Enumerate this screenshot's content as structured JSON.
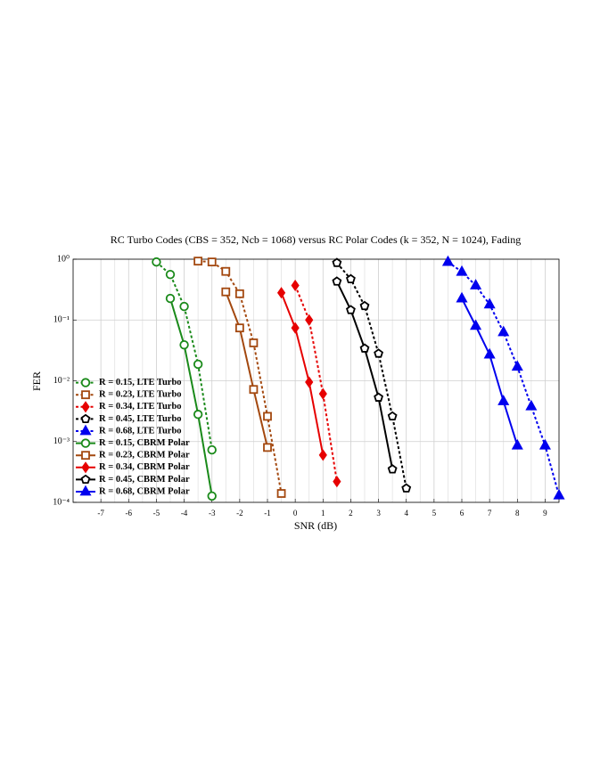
{
  "chart_data": {
    "type": "line",
    "title": "RC Turbo Codes (CBS = 352, Ncb = 1068) versus RC Polar Codes (k = 352, N = 1024), Fading",
    "x_label": "SNR (dB)",
    "y_label": "FER",
    "xlim": [
      -8,
      9.5
    ],
    "xticks": [
      -7,
      -6,
      -5,
      -4,
      -3,
      -2,
      -1,
      0,
      1,
      2,
      3,
      4,
      5,
      6,
      7,
      8,
      9
    ],
    "ylim": [
      0.0001,
      1
    ],
    "y_log": true,
    "yticks": [
      {
        "value": 0.0001,
        "label": "10⁻⁴"
      },
      {
        "value": 0.001,
        "label": "10⁻³"
      },
      {
        "value": 0.01,
        "label": "10⁻²"
      },
      {
        "value": 0.1,
        "label": "10⁻¹"
      },
      {
        "value": 1,
        "label": "10⁰"
      }
    ],
    "grid": true,
    "legend_position": "lower-left",
    "series": [
      {
        "name": "R = 0.15, LTE Turbo",
        "color": "#1a8a1a",
        "linestyle": "dashed",
        "marker": "circle",
        "marker_filled": false,
        "x": [
          -5,
          -4.5,
          -4,
          -3.5,
          -3
        ],
        "values": [
          0.9,
          0.56,
          0.167,
          0.0187,
          0.00073
        ]
      },
      {
        "name": "R = 0.23, LTE Turbo",
        "color": "#a3480f",
        "linestyle": "dashed",
        "marker": "square",
        "marker_filled": false,
        "x": [
          -3.5,
          -3,
          -2.5,
          -2,
          -1.5,
          -1,
          -0.5
        ],
        "values": [
          0.93,
          0.9,
          0.63,
          0.27,
          0.042,
          0.0026,
          0.00014
        ]
      },
      {
        "name": "R = 0.34, LTE Turbo",
        "color": "#e60000",
        "linestyle": "dashed",
        "marker": "diamond",
        "marker_filled": true,
        "x": [
          0,
          0.5,
          1,
          1.5
        ],
        "values": [
          0.37,
          0.1,
          0.0061,
          0.00022
        ]
      },
      {
        "name": "R = 0.45, LTE Turbo",
        "color": "#000000",
        "linestyle": "dashed",
        "marker": "pentagon",
        "marker_filled": false,
        "x": [
          1.5,
          2,
          2.5,
          3,
          3.5,
          4
        ],
        "values": [
          0.87,
          0.47,
          0.17,
          0.028,
          0.0026,
          0.00017
        ]
      },
      {
        "name": "R = 0.68, LTE Turbo",
        "color": "#0000ee",
        "linestyle": "dashed",
        "marker": "triangle",
        "marker_filled": true,
        "x": [
          5.5,
          6,
          6.5,
          7,
          7.5,
          8,
          8.5,
          9,
          9.5
        ],
        "values": [
          0.9,
          0.62,
          0.37,
          0.18,
          0.063,
          0.017,
          0.0038,
          0.00086,
          0.00013
        ]
      },
      {
        "name": "R = 0.15, CBRM Polar",
        "color": "#1a8a1a",
        "linestyle": "solid",
        "marker": "circle",
        "marker_filled": false,
        "x": [
          -4.5,
          -4,
          -3.5,
          -3
        ],
        "values": [
          0.226,
          0.039,
          0.0028,
          0.000127
        ]
      },
      {
        "name": "R = 0.23, CBRM Polar",
        "color": "#a3480f",
        "linestyle": "solid",
        "marker": "square",
        "marker_filled": false,
        "x": [
          -2.5,
          -2,
          -1.5,
          -1
        ],
        "values": [
          0.29,
          0.074,
          0.0072,
          0.0008
        ]
      },
      {
        "name": "R = 0.34, CBRM Polar",
        "color": "#e60000",
        "linestyle": "solid",
        "marker": "diamond",
        "marker_filled": true,
        "x": [
          -0.5,
          0,
          0.5,
          1
        ],
        "values": [
          0.28,
          0.074,
          0.0095,
          0.0006
        ]
      },
      {
        "name": "R = 0.45, CBRM Polar",
        "color": "#000000",
        "linestyle": "solid",
        "marker": "pentagon",
        "marker_filled": false,
        "x": [
          1.5,
          2,
          2.5,
          3,
          3.5
        ],
        "values": [
          0.43,
          0.146,
          0.034,
          0.0053,
          0.00035
        ]
      },
      {
        "name": "R = 0.68, CBRM Polar",
        "color": "#0000ee",
        "linestyle": "solid",
        "marker": "triangle",
        "marker_filled": true,
        "x": [
          6,
          6.5,
          7,
          7.5,
          8
        ],
        "values": [
          0.226,
          0.08,
          0.027,
          0.0046,
          0.00086
        ]
      }
    ]
  }
}
